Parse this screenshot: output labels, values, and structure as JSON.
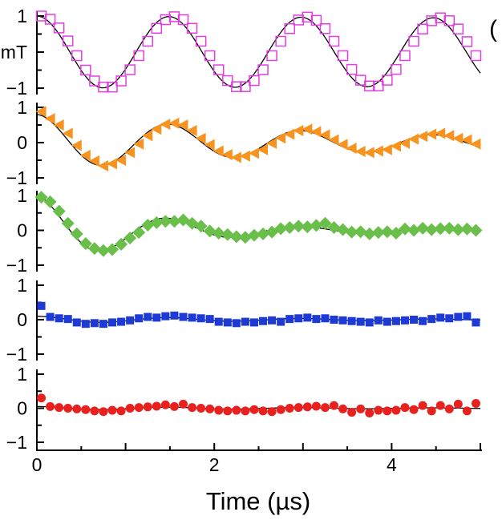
{
  "chart_data": {
    "type": "scatter",
    "title": "",
    "xlabel": "Time (µs)",
    "xlim": [
      0,
      5
    ],
    "xticks": [
      0,
      2,
      4
    ],
    "grid": false,
    "unit_label": "mT",
    "partial_label": "(",
    "x": [
      0,
      0.1,
      0.2,
      0.3,
      0.4,
      0.5,
      0.6,
      0.7,
      0.8,
      0.9,
      1.0,
      1.1,
      1.2,
      1.3,
      1.4,
      1.5,
      1.6,
      1.7,
      1.8,
      1.9,
      2.0,
      2.1,
      2.2,
      2.3,
      2.4,
      2.5,
      2.6,
      2.7,
      2.8,
      2.9,
      3.0,
      3.1,
      3.2,
      3.3,
      3.4,
      3.5,
      3.6,
      3.7,
      3.8,
      3.9,
      4.0,
      4.1,
      4.2,
      4.3,
      4.4,
      4.5,
      4.6,
      4.7,
      4.8,
      4.9
    ],
    "panels": [
      {
        "name": "magenta-open-squares",
        "marker": "open-square",
        "color": "#e23ee0",
        "ylim": [
          -1,
          1
        ],
        "yticks": [
          "1",
          "mT",
          "−1"
        ],
        "fit": {
          "amplitude": 1.0,
          "decay_us": 90,
          "period_us": 1.49
        },
        "values": [
          1,
          0.91,
          0.67,
          0.31,
          -0.1,
          -0.5,
          -0.8,
          -0.97,
          -0.97,
          -0.8,
          -0.49,
          -0.1,
          0.3,
          0.66,
          0.9,
          0.98,
          0.9,
          0.66,
          0.3,
          -0.1,
          -0.49,
          -0.79,
          -0.96,
          -0.96,
          -0.79,
          -0.49,
          -0.1,
          0.3,
          0.65,
          0.89,
          0.97,
          0.88,
          0.65,
          0.3,
          -0.1,
          -0.48,
          -0.78,
          -0.94,
          -0.94,
          -0.78,
          -0.48,
          -0.1,
          0.3,
          0.64,
          0.87,
          0.95,
          0.87,
          0.64,
          0.29,
          -0.1
        ]
      },
      {
        "name": "orange-triangles",
        "marker": "left-triangle",
        "color": "#f7931e",
        "ylim": [
          -1,
          1
        ],
        "yticks": [
          "1",
          "0",
          "−1"
        ],
        "fit": {
          "amplitude": 0.8,
          "decay_us": 3.5,
          "period_us": 1.49
        },
        "values": [
          0.88,
          0.68,
          0.5,
          0.26,
          -0.08,
          -0.36,
          -0.52,
          -0.66,
          -0.6,
          -0.5,
          -0.28,
          -0.04,
          0.2,
          0.38,
          0.52,
          0.55,
          0.5,
          0.34,
          0.12,
          -0.06,
          -0.24,
          -0.34,
          -0.42,
          -0.38,
          -0.3,
          -0.2,
          -0.02,
          0.13,
          0.24,
          0.34,
          0.38,
          0.31,
          0.22,
          0.08,
          -0.05,
          -0.16,
          -0.25,
          -0.28,
          -0.24,
          -0.2,
          -0.1,
          -0.02,
          0.1,
          0.18,
          0.24,
          0.26,
          0.2,
          0.12,
          0.08,
          -0.04
        ]
      },
      {
        "name": "green-diamonds",
        "marker": "diamond",
        "color": "#6abf4b",
        "ylim": [
          -1,
          1
        ],
        "yticks": [
          "1",
          "0",
          "−1"
        ],
        "fit": {
          "amplitude": 1.0,
          "decay_us": 1.4,
          "period_us": 1.49
        },
        "values": [
          0.95,
          0.82,
          0.55,
          0.2,
          -0.1,
          -0.38,
          -0.52,
          -0.58,
          -0.55,
          -0.4,
          -0.22,
          -0.06,
          0.15,
          0.22,
          0.26,
          0.26,
          0.3,
          0.2,
          0.12,
          -0.02,
          -0.08,
          -0.12,
          -0.18,
          -0.2,
          -0.14,
          -0.1,
          -0.05,
          0.05,
          0.08,
          0.12,
          0.1,
          0.14,
          0.2,
          0.08,
          0.02,
          -0.05,
          -0.04,
          -0.1,
          -0.06,
          -0.04,
          -0.08,
          0.04,
          0,
          0.06,
          0.02,
          0.05,
          0.06,
          0.02,
          0.04,
          0
        ]
      },
      {
        "name": "blue-squares",
        "marker": "filled-square",
        "color": "#1e3ad6",
        "ylim": [
          -1,
          1
        ],
        "yticks": [
          "1",
          "0",
          "−1"
        ],
        "fit": {
          "amplitude": 0.1,
          "decay_us": 3.0,
          "period_us": 1.49
        },
        "values": [
          0.4,
          0.08,
          0.04,
          0.02,
          -0.08,
          -0.12,
          -0.1,
          -0.12,
          -0.08,
          -0.06,
          -0.02,
          0.04,
          0.08,
          0.06,
          0.1,
          0.12,
          0.08,
          0.06,
          0.04,
          0.02,
          -0.06,
          -0.08,
          -0.1,
          -0.06,
          -0.08,
          -0.04,
          -0.02,
          -0.06,
          0.02,
          0.04,
          0.06,
          0.02,
          0.04,
          0,
          -0.02,
          -0.04,
          -0.06,
          -0.08,
          -0.02,
          -0.06,
          -0.04,
          -0.02,
          0,
          -0.04,
          0.02,
          0.06,
          0.04,
          0.08,
          0.1,
          -0.08
        ]
      },
      {
        "name": "red-circles",
        "marker": "circle",
        "color": "#e8211f",
        "ylim": [
          -1,
          1
        ],
        "yticks": [
          "1",
          "0",
          "−1"
        ],
        "fit": {
          "amplitude": 0.05,
          "decay_us": 3.0,
          "period_us": 1.49
        },
        "values": [
          0.3,
          0.05,
          0.02,
          0.0,
          -0.02,
          -0.04,
          -0.08,
          -0.1,
          -0.06,
          -0.08,
          0.0,
          0.02,
          0.04,
          0.06,
          0.1,
          0.05,
          0.12,
          0.02,
          0.0,
          -0.02,
          -0.06,
          -0.08,
          -0.06,
          -0.08,
          -0.04,
          -0.08,
          -0.1,
          -0.04,
          0.0,
          0.02,
          0.04,
          0.06,
          0.02,
          0.08,
          -0.02,
          -0.12,
          -0.02,
          -0.14,
          -0.06,
          -0.08,
          -0.06,
          0.02,
          -0.04,
          0.08,
          -0.08,
          0.08,
          -0.02,
          0.12,
          -0.08,
          0.14
        ]
      }
    ]
  }
}
